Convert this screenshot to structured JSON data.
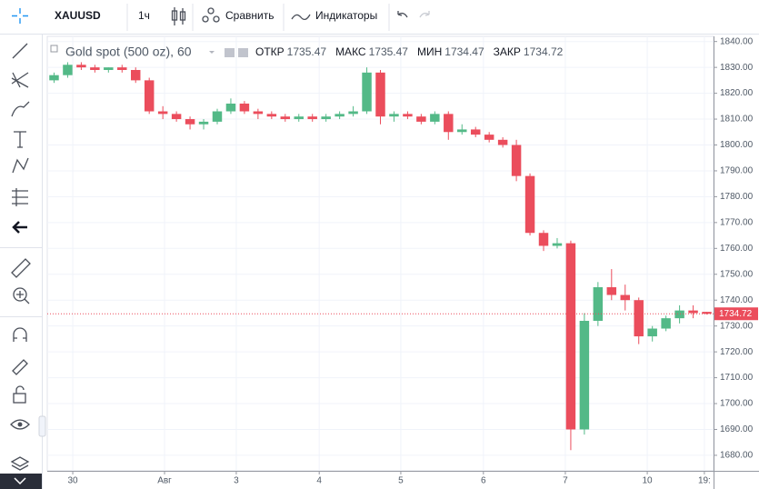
{
  "toolbar": {
    "symbol": "XAUUSD",
    "interval": "1ч",
    "compare": "Сравнить",
    "indicators": "Индикаторы"
  },
  "chart_data": {
    "type": "candlestick",
    "title": "Gold spot (500 oz), 60",
    "ohlc_labels": [
      "ОТКР",
      "МАКС",
      "МИН",
      "ЗАКР"
    ],
    "x": [
      2,
      6,
      10,
      14,
      18,
      22,
      26,
      30,
      34,
      38,
      42,
      46,
      50,
      54,
      58,
      62,
      66,
      70,
      74,
      78,
      82,
      86,
      90,
      94,
      98,
      102,
      106,
      110,
      114,
      118,
      122,
      126,
      130,
      134,
      138,
      142,
      146,
      150,
      154,
      158,
      162,
      166,
      170,
      174,
      178,
      182,
      186,
      190,
      194
    ],
    "open": [
      1825,
      1827,
      1831,
      1830,
      1829,
      1830,
      1829,
      1825,
      1813,
      1812,
      1810,
      1808,
      1809,
      1813,
      1816,
      1813,
      1812,
      1811,
      1810,
      1811,
      1810,
      1811,
      1812,
      1813,
      1828,
      1811,
      1812,
      1811,
      1809,
      1812,
      1805,
      1806,
      1804,
      1802,
      1800,
      1788,
      1766,
      1761,
      1762,
      1690,
      1732,
      1745,
      1742,
      1740,
      1726,
      1729,
      1733,
      1736,
      1735.47
    ],
    "high": [
      1828,
      1832,
      1832,
      1831,
      1830,
      1831,
      1830,
      1826,
      1815,
      1813,
      1811,
      1810,
      1814,
      1818,
      1817,
      1814,
      1813,
      1812,
      1812,
      1812,
      1812,
      1813,
      1815,
      1830,
      1829,
      1813,
      1813,
      1812,
      1813,
      1813,
      1808,
      1807,
      1805,
      1803,
      1802,
      1789,
      1767,
      1764,
      1763,
      1735,
      1747,
      1752,
      1746,
      1741,
      1730,
      1734,
      1738,
      1738,
      1735.47
    ],
    "low": [
      1824,
      1826,
      1829,
      1828,
      1828,
      1828,
      1824,
      1812,
      1810,
      1809,
      1806,
      1806,
      1808,
      1812,
      1812,
      1810,
      1810,
      1809,
      1809,
      1809,
      1809,
      1810,
      1811,
      1812,
      1808,
      1809,
      1810,
      1808,
      1808,
      1802,
      1804,
      1803,
      1801,
      1799,
      1786,
      1765,
      1759,
      1760,
      1682,
      1688,
      1730,
      1740,
      1736,
      1723,
      1724,
      1728,
      1731,
      1733,
      1734.47
    ],
    "close": [
      1827,
      1831,
      1830,
      1829,
      1830,
      1829,
      1825,
      1813,
      1812,
      1810,
      1808,
      1809,
      1813,
      1816,
      1813,
      1812,
      1811,
      1810,
      1811,
      1810,
      1811,
      1812,
      1813,
      1828,
      1811,
      1812,
      1811,
      1809,
      1812,
      1805,
      1806,
      1804,
      1802,
      1800,
      1788,
      1766,
      1761,
      1762,
      1690,
      1732,
      1745,
      1742,
      1740,
      1726,
      1729,
      1733,
      1736,
      1735,
      1734.72
    ],
    "up_color": "#53b987",
    "down_color": "#eb4d5c",
    "grid": true,
    "xlim": [
      0,
      196
    ],
    "xticks": [
      {
        "value": 7.5,
        "label": "30"
      },
      {
        "value": 34.5,
        "label": "Авг"
      },
      {
        "value": 55.6,
        "label": "3"
      },
      {
        "value": 80,
        "label": "4"
      },
      {
        "value": 104,
        "label": "5"
      },
      {
        "value": 128.3,
        "label": "6"
      },
      {
        "value": 152.4,
        "label": "7"
      },
      {
        "value": 176.5,
        "label": "10"
      },
      {
        "value": 193.3,
        "label": "19:"
      }
    ],
    "ylim": [
      1674,
      1842
    ],
    "yticks": [
      {
        "value": 1680,
        "label": "1680.00"
      },
      {
        "value": 1690,
        "label": "1690.00"
      },
      {
        "value": 1700,
        "label": "1700.00"
      },
      {
        "value": 1710,
        "label": "1710.00"
      },
      {
        "value": 1720,
        "label": "1720.00"
      },
      {
        "value": 1730,
        "label": "1730.00"
      },
      {
        "value": 1740,
        "label": "1740.00"
      },
      {
        "value": 1750,
        "label": "1750.00"
      },
      {
        "value": 1760,
        "label": "1760.00"
      },
      {
        "value": 1770,
        "label": "1770.00"
      },
      {
        "value": 1780,
        "label": "1780.00"
      },
      {
        "value": 1790,
        "label": "1790.00"
      },
      {
        "value": 1800,
        "label": "1800.00"
      },
      {
        "value": 1810,
        "label": "1810.00"
      },
      {
        "value": 1820,
        "label": "1820.00"
      },
      {
        "value": 1830,
        "label": "1830.00"
      },
      {
        "value": 1840,
        "label": "1840.00"
      }
    ]
  }
}
